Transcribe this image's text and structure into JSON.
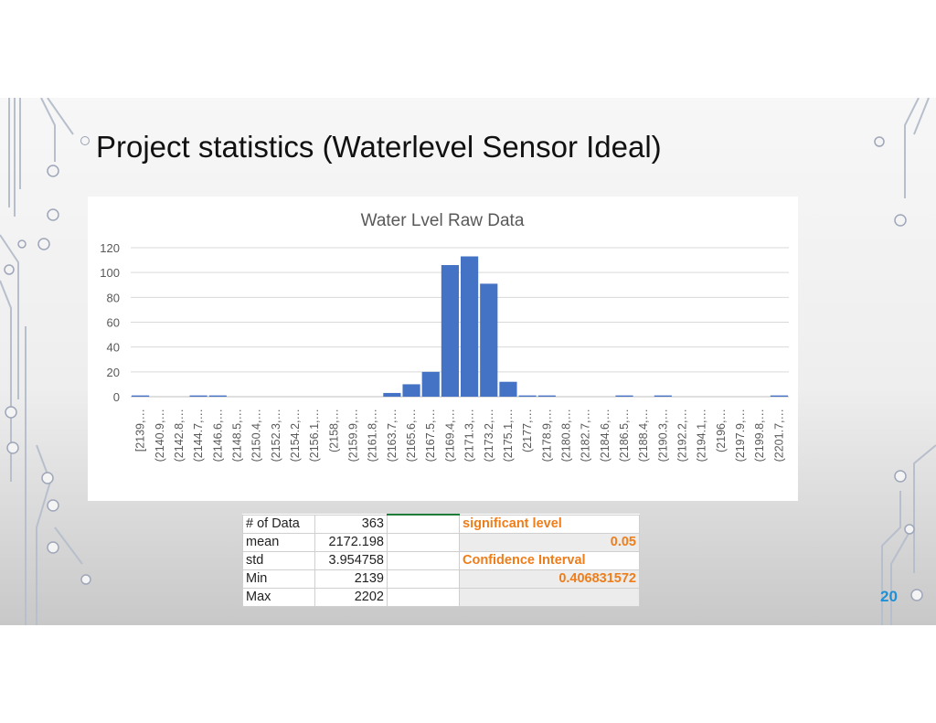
{
  "slide": {
    "title": "Project statistics (Waterlevel Sensor Ideal)",
    "page_number": "20"
  },
  "chart_data": {
    "type": "bar",
    "title": "Water Lvel Raw Data",
    "xlabel": "",
    "ylabel": "",
    "ylim": [
      0,
      120
    ],
    "yticks": [
      "0",
      "20",
      "40",
      "60",
      "80",
      "100",
      "120"
    ],
    "grid": true,
    "bar_color": "#4472c4",
    "categories": [
      "[2139,…",
      "(2140.9,…",
      "(2142.8,…",
      "(2144.7,…",
      "(2146.6,…",
      "(2148.5,…",
      "(2150.4,…",
      "(2152.3,…",
      "(2154.2,…",
      "(2156.1,…",
      "(2158,…",
      "(2159.9,…",
      "(2161.8,…",
      "(2163.7,…",
      "(2165.6,…",
      "(2167.5,…",
      "(2169.4,…",
      "(2171.3,…",
      "(2173.2,…",
      "(2175.1,…",
      "(2177,…",
      "(2178.9,…",
      "(2180.8,…",
      "(2182.7,…",
      "(2184.6,…",
      "(2186.5,…",
      "(2188.4,…",
      "(2190.3,…",
      "(2192.2,…",
      "(2194.1,…",
      "(2196,…",
      "(2197.9,…",
      "(2199.8,…",
      "(2201.7,…"
    ],
    "values": [
      1,
      0,
      0,
      1,
      1,
      0,
      0,
      0,
      0,
      0,
      0,
      0,
      0,
      3,
      10,
      20,
      106,
      113,
      91,
      12,
      1,
      1,
      0,
      0,
      0,
      1,
      0,
      1,
      0,
      0,
      0,
      0,
      0,
      1
    ]
  },
  "stats_table": {
    "rows": [
      {
        "label": "# of Data",
        "value": "363",
        "right": "significant level"
      },
      {
        "label": "mean",
        "value": "2172.198",
        "right": "0.05"
      },
      {
        "label": "std",
        "value": "3.954758",
        "right": "Confidence Interval"
      },
      {
        "label": "Min",
        "value": "2139",
        "right": "0.406831572"
      },
      {
        "label": "Max",
        "value": "2202",
        "right": ""
      }
    ]
  }
}
